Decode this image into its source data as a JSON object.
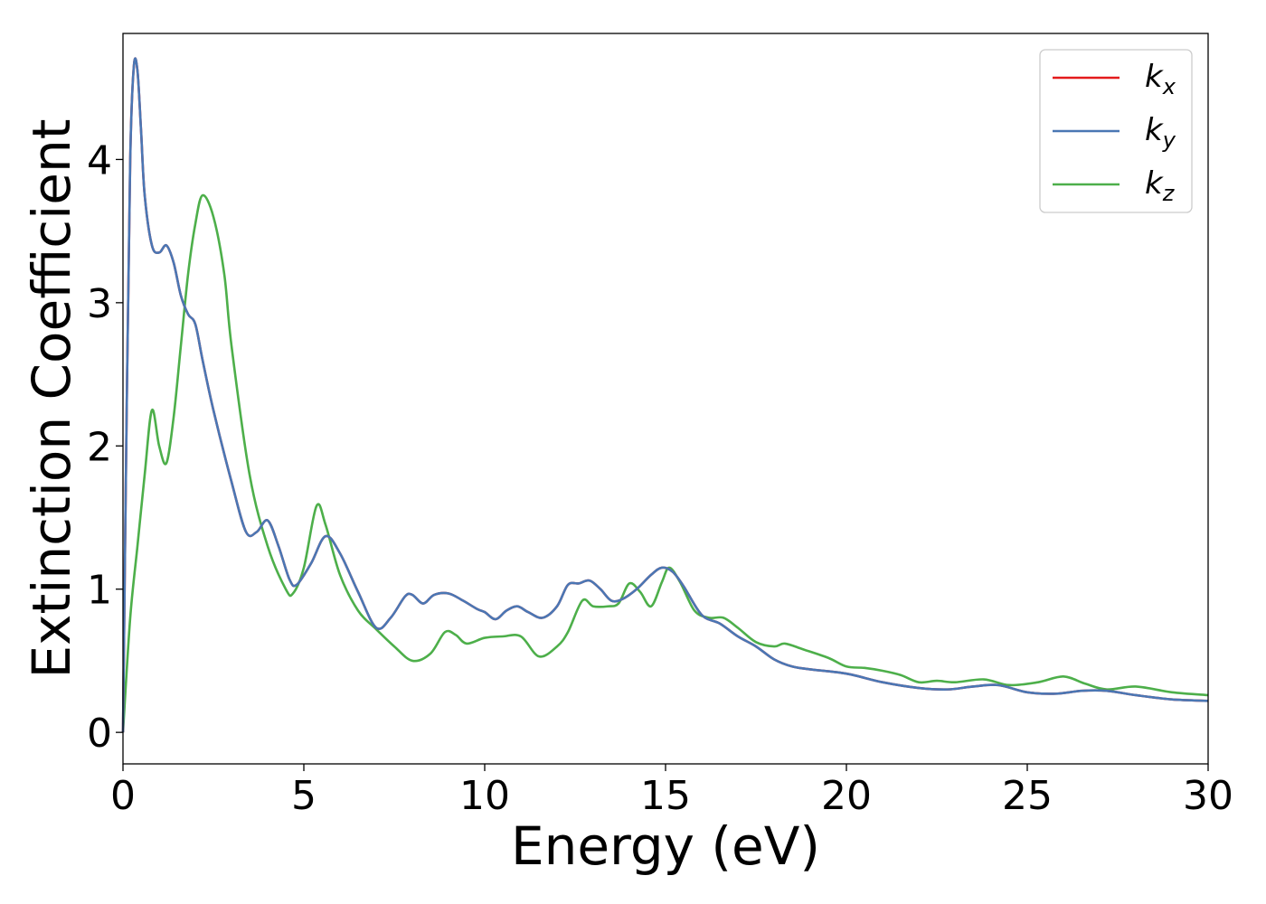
{
  "chart_data": {
    "type": "line",
    "title": "",
    "xlabel": "Energy (eV)",
    "ylabel": "Extinction Coefficient",
    "xlim": [
      0,
      30
    ],
    "ylim": [
      -0.22,
      4.88
    ],
    "xticks": [
      "0",
      "5",
      "10",
      "15",
      "20",
      "25",
      "30"
    ],
    "yticks": [
      "0",
      "1",
      "2",
      "3",
      "4"
    ],
    "grid": false,
    "legend_position": "top-right",
    "series": [
      {
        "name": "k_x",
        "legend_base": "k",
        "legend_sub": "x",
        "color": "#e41a1c",
        "x": [
          0,
          0.1,
          0.2,
          0.3,
          0.4,
          0.5,
          0.6,
          0.8,
          1.0,
          1.2,
          1.4,
          1.6,
          1.8,
          2.0,
          2.2,
          2.5,
          3.0,
          3.4,
          3.7,
          4.0,
          4.3,
          4.6,
          4.8,
          5.2,
          5.6,
          6.0,
          6.5,
          7.0,
          7.4,
          7.8,
          8.0,
          8.3,
          8.6,
          9.0,
          9.4,
          9.8,
          10.0,
          10.3,
          10.6,
          10.9,
          11.2,
          11.6,
          12.0,
          12.3,
          12.6,
          12.9,
          13.2,
          13.5,
          13.8,
          14.2,
          14.6,
          14.9,
          15.2,
          15.5,
          16.0,
          16.5,
          17.0,
          17.5,
          18.0,
          18.5,
          19.0,
          20.0,
          21.0,
          22.0,
          22.8,
          23.5,
          24.2,
          25.0,
          25.8,
          26.5,
          27.2,
          28.0,
          29.0,
          30.0
        ],
        "values": [
          0.0,
          2.2,
          4.0,
          4.65,
          4.62,
          4.2,
          3.75,
          3.4,
          3.35,
          3.4,
          3.28,
          3.05,
          2.92,
          2.85,
          2.6,
          2.25,
          1.75,
          1.4,
          1.4,
          1.48,
          1.3,
          1.07,
          1.03,
          1.18,
          1.37,
          1.25,
          0.98,
          0.73,
          0.8,
          0.95,
          0.96,
          0.9,
          0.96,
          0.97,
          0.92,
          0.86,
          0.84,
          0.79,
          0.85,
          0.88,
          0.84,
          0.8,
          0.88,
          1.03,
          1.04,
          1.06,
          1.0,
          0.92,
          0.93,
          1.0,
          1.1,
          1.15,
          1.12,
          1.02,
          0.82,
          0.76,
          0.67,
          0.6,
          0.51,
          0.46,
          0.44,
          0.41,
          0.35,
          0.31,
          0.3,
          0.32,
          0.33,
          0.28,
          0.27,
          0.29,
          0.29,
          0.26,
          0.23,
          0.22
        ]
      },
      {
        "name": "k_y",
        "legend_base": "k",
        "legend_sub": "y",
        "color": "#4a77b4",
        "x": [
          0,
          0.1,
          0.2,
          0.3,
          0.4,
          0.5,
          0.6,
          0.8,
          1.0,
          1.2,
          1.4,
          1.6,
          1.8,
          2.0,
          2.2,
          2.5,
          3.0,
          3.4,
          3.7,
          4.0,
          4.3,
          4.6,
          4.8,
          5.2,
          5.6,
          6.0,
          6.5,
          7.0,
          7.4,
          7.8,
          8.0,
          8.3,
          8.6,
          9.0,
          9.4,
          9.8,
          10.0,
          10.3,
          10.6,
          10.9,
          11.2,
          11.6,
          12.0,
          12.3,
          12.6,
          12.9,
          13.2,
          13.5,
          13.8,
          14.2,
          14.6,
          14.9,
          15.2,
          15.5,
          16.0,
          16.5,
          17.0,
          17.5,
          18.0,
          18.5,
          19.0,
          20.0,
          21.0,
          22.0,
          22.8,
          23.5,
          24.2,
          25.0,
          25.8,
          26.5,
          27.2,
          28.0,
          29.0,
          30.0
        ],
        "values": [
          0.0,
          2.2,
          4.0,
          4.65,
          4.62,
          4.2,
          3.75,
          3.4,
          3.35,
          3.4,
          3.28,
          3.05,
          2.92,
          2.85,
          2.6,
          2.25,
          1.75,
          1.4,
          1.4,
          1.48,
          1.3,
          1.07,
          1.03,
          1.18,
          1.37,
          1.25,
          0.98,
          0.73,
          0.8,
          0.95,
          0.96,
          0.9,
          0.96,
          0.97,
          0.92,
          0.86,
          0.84,
          0.79,
          0.85,
          0.88,
          0.84,
          0.8,
          0.88,
          1.03,
          1.04,
          1.06,
          1.0,
          0.92,
          0.93,
          1.0,
          1.1,
          1.15,
          1.12,
          1.02,
          0.82,
          0.76,
          0.67,
          0.6,
          0.51,
          0.46,
          0.44,
          0.41,
          0.35,
          0.31,
          0.3,
          0.32,
          0.33,
          0.28,
          0.27,
          0.29,
          0.29,
          0.26,
          0.23,
          0.22
        ]
      },
      {
        "name": "k_z",
        "legend_base": "k",
        "legend_sub": "z",
        "color": "#4daf4a",
        "x": [
          0,
          0.2,
          0.4,
          0.6,
          0.8,
          1.0,
          1.2,
          1.4,
          1.6,
          1.8,
          2.0,
          2.2,
          2.5,
          2.8,
          3.0,
          3.5,
          4.0,
          4.5,
          4.7,
          5.0,
          5.35,
          5.6,
          6.0,
          6.5,
          7.0,
          7.5,
          8.0,
          8.5,
          8.9,
          9.2,
          9.5,
          10.0,
          10.5,
          11.0,
          11.5,
          12.0,
          12.3,
          12.7,
          13.0,
          13.4,
          13.7,
          14.0,
          14.3,
          14.6,
          14.9,
          15.1,
          15.4,
          15.8,
          16.2,
          16.6,
          17.0,
          17.5,
          18.0,
          18.3,
          18.8,
          19.5,
          20.0,
          20.5,
          21.0,
          21.5,
          22.0,
          22.5,
          23.0,
          23.8,
          24.5,
          25.3,
          26.0,
          26.6,
          27.2,
          28.0,
          29.0,
          30.0
        ],
        "values": [
          0.0,
          0.8,
          1.3,
          1.8,
          2.25,
          2.0,
          1.88,
          2.2,
          2.7,
          3.2,
          3.55,
          3.75,
          3.6,
          3.2,
          2.7,
          1.8,
          1.3,
          1.0,
          0.97,
          1.15,
          1.58,
          1.45,
          1.1,
          0.85,
          0.72,
          0.6,
          0.5,
          0.55,
          0.7,
          0.68,
          0.62,
          0.66,
          0.67,
          0.67,
          0.53,
          0.6,
          0.7,
          0.92,
          0.88,
          0.88,
          0.9,
          1.04,
          0.98,
          0.88,
          1.05,
          1.15,
          1.05,
          0.85,
          0.8,
          0.8,
          0.73,
          0.63,
          0.6,
          0.62,
          0.58,
          0.52,
          0.46,
          0.45,
          0.43,
          0.4,
          0.35,
          0.36,
          0.35,
          0.37,
          0.33,
          0.35,
          0.39,
          0.34,
          0.3,
          0.32,
          0.28,
          0.26
        ]
      }
    ]
  }
}
